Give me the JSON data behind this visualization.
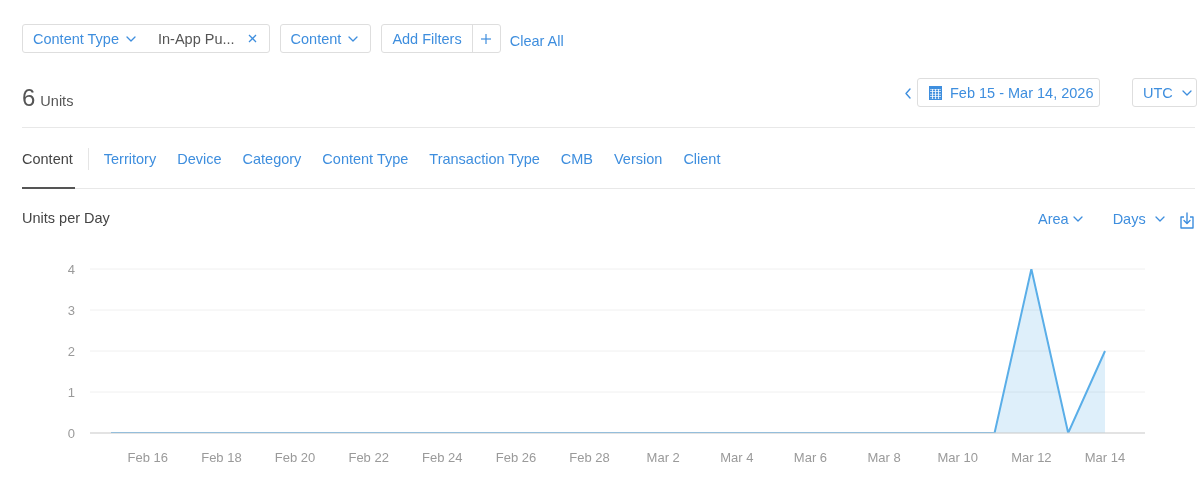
{
  "chart_data": {
    "type": "area",
    "title": "Units per Day",
    "categories": [
      null,
      "Feb 16",
      null,
      "Feb 18",
      null,
      "Feb 20",
      null,
      "Feb 22",
      null,
      "Feb 24",
      null,
      "Feb 26",
      null,
      "Feb 28",
      null,
      "Mar 2",
      null,
      "Mar 4",
      null,
      "Mar 6",
      null,
      "Mar 8",
      null,
      "Mar 10",
      null,
      "Mar 12",
      null,
      "Mar 14"
    ],
    "values": [
      0,
      0,
      0,
      0,
      0,
      0,
      0,
      0,
      0,
      0,
      0,
      0,
      0,
      0,
      0,
      0,
      0,
      0,
      0,
      0,
      0,
      0,
      0,
      0,
      0,
      4,
      0,
      2
    ],
    "color": "#5aaee8",
    "ylim": [
      0,
      4
    ],
    "yticks": [
      0,
      1,
      2,
      3,
      4
    ],
    "grid": "y",
    "annotations": [
      "Content Type",
      "In-App Pu...",
      "Content",
      "Add Filters",
      "Clear All",
      "6 Units",
      "Feb 15 - Mar 14, 2026",
      "UTC",
      "Content",
      "Territory",
      "Device",
      "Category",
      "Content Type",
      "Transaction Type",
      "CMB",
      "Version",
      "Client",
      "Area",
      "Days"
    ]
  }
}
